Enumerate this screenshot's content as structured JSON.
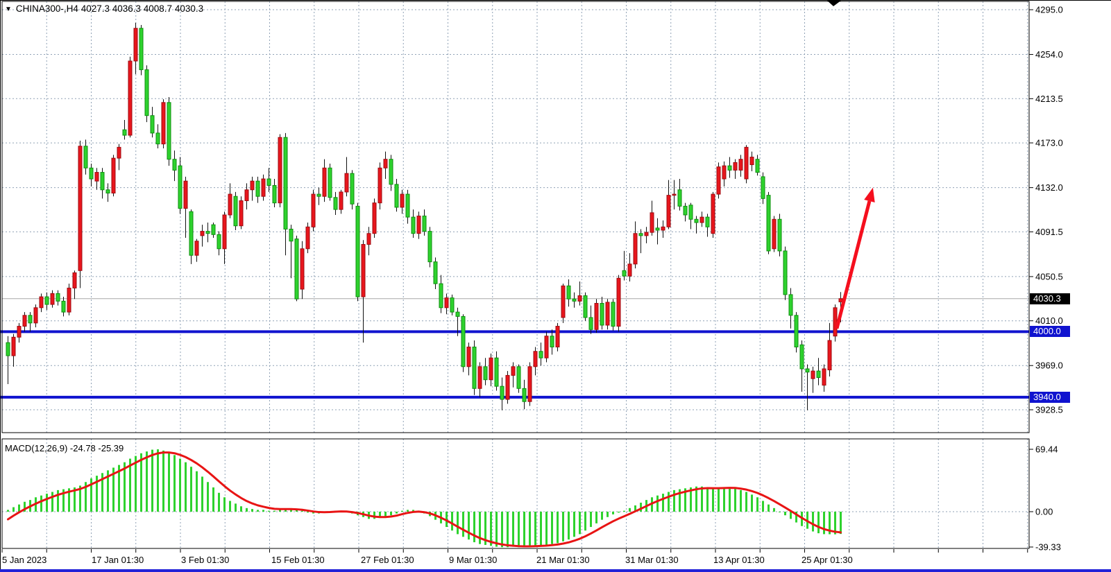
{
  "header": {
    "triangle": "▼",
    "text": "CHINA300-,H4  4027.3 4036.3 4008.7 4030.3"
  },
  "price_tags": {
    "current": {
      "label": "4030.3"
    },
    "level1": {
      "label": "4000.0"
    },
    "level2": {
      "label": "3940.0"
    }
  },
  "price_axis": {
    "ticks": [
      4295.0,
      4254.0,
      4213.5,
      4173.0,
      4132.0,
      4091.5,
      4050.5,
      4010.0,
      3969.0,
      3928.5
    ],
    "labels": [
      "4295.0",
      "4254.0",
      "4213.5",
      "4173.0",
      "4132.0",
      "4091.5",
      "4050.5",
      "4010.0",
      "3969.0",
      "3928.5"
    ]
  },
  "time_axis": {
    "labels": [
      "5 Jan 2023",
      "17 Jan 01:30",
      "3 Feb 01:30",
      "15 Feb 01:30",
      "27 Feb 01:30",
      "9 Mar 01:30",
      "21 Mar 01:30",
      "31 Mar 01:30",
      "13 Apr 01:30",
      "25 Apr 01:30"
    ],
    "x": [
      3,
      132,
      261,
      391,
      520,
      647,
      773,
      901,
      1028,
      1155
    ]
  },
  "indicator": {
    "label": "MACD(12,26,9) -24.78 -25.39",
    "axis_labels": [
      "69.44",
      "0.00",
      "-39.33"
    ]
  },
  "colors": {
    "up": "#e8161d",
    "up_border": "#9e0b10",
    "down": "#2ed22e",
    "down_border": "#0e8f0e",
    "wick": "#111111",
    "grid": "#8fa1b5",
    "level_blue": "#1013cf",
    "current_line": "#a8a8a8",
    "macd_hist": "#2ed22e",
    "signal": "#e81414",
    "arrow": "#f50f1e"
  },
  "chart_data": {
    "type": "candlestick",
    "title": "CHINA300-,H4",
    "symbol": "CHINA300-",
    "timeframe": "H4",
    "current_bar": {
      "open": 4027.3,
      "high": 4036.3,
      "low": 4008.7,
      "close": 4030.3
    },
    "current_price": 4030.3,
    "levels": [
      4000.0,
      3940.0
    ],
    "y_ticks": [
      4295.0,
      4254.0,
      4213.5,
      4173.0,
      4132.0,
      4091.5,
      4050.5,
      4010.0,
      3969.0,
      3928.5
    ],
    "x_tick_labels": [
      "5 Jan 2023",
      "17 Jan 01:30",
      "3 Feb 01:30",
      "15 Feb 01:30",
      "27 Feb 01:30",
      "9 Mar 01:30",
      "21 Mar 01:30",
      "31 Mar 01:30",
      "13 Apr 01:30",
      "25 Apr 01:30"
    ],
    "candles_ohlc": [
      [
        3990,
        3996,
        3952,
        3978
      ],
      [
        3978,
        3998,
        3968,
        3995
      ],
      [
        3995,
        4008,
        3990,
        4005
      ],
      [
        4005,
        4018,
        4000,
        4015
      ],
      [
        4015,
        4018,
        4000,
        4008
      ],
      [
        4008,
        4025,
        4004,
        4022
      ],
      [
        4022,
        4035,
        4018,
        4032
      ],
      [
        4032,
        4036,
        4020,
        4025
      ],
      [
        4025,
        4038,
        4022,
        4035
      ],
      [
        4035,
        4038,
        4024,
        4028
      ],
      [
        4028,
        4032,
        4014,
        4018
      ],
      [
        4018,
        4044,
        4015,
        4040
      ],
      [
        4040,
        4056,
        4030,
        4054
      ],
      [
        4056,
        4175,
        4040,
        4170
      ],
      [
        4170,
        4176,
        4144,
        4150
      ],
      [
        4150,
        4154,
        4133,
        4140
      ],
      [
        4138,
        4150,
        4130,
        4146
      ],
      [
        4146,
        4150,
        4122,
        4130
      ],
      [
        4130,
        4136,
        4119,
        4127
      ],
      [
        4127,
        4162,
        4124,
        4159
      ],
      [
        4159,
        4172,
        4148,
        4169
      ],
      [
        4185,
        4194,
        4176,
        4180
      ],
      [
        4180,
        4252,
        4178,
        4248
      ],
      [
        4248,
        4283,
        4236,
        4278
      ],
      [
        4278,
        4281,
        4235,
        4240
      ],
      [
        4240,
        4244,
        4192,
        4198
      ],
      [
        4198,
        4206,
        4178,
        4182
      ],
      [
        4182,
        4190,
        4168,
        4172
      ],
      [
        4172,
        4213,
        4168,
        4210
      ],
      [
        4210,
        4215,
        4152,
        4158
      ],
      [
        4158,
        4166,
        4138,
        4148
      ],
      [
        4152,
        4160,
        4108,
        4113
      ],
      [
        4113,
        4142,
        4086,
        4138
      ],
      [
        4110,
        4112,
        4062,
        4070
      ],
      [
        4070,
        4085,
        4064,
        4083
      ],
      [
        4088,
        4098,
        4078,
        4092
      ],
      [
        4092,
        4100,
        4082,
        4090
      ],
      [
        4098,
        4100,
        4086,
        4089
      ],
      [
        4089,
        4092,
        4070,
        4076
      ],
      [
        4076,
        4110,
        4062,
        4107
      ],
      [
        4107,
        4136,
        4104,
        4126
      ],
      [
        4124,
        4128,
        4093,
        4097
      ],
      [
        4097,
        4124,
        4094,
        4120
      ],
      [
        4120,
        4136,
        4112,
        4130
      ],
      [
        4130,
        4142,
        4120,
        4138
      ],
      [
        4138,
        4142,
        4118,
        4124
      ],
      [
        4124,
        4144,
        4120,
        4140
      ],
      [
        4140,
        4150,
        4128,
        4134
      ],
      [
        4134,
        4140,
        4114,
        4118
      ],
      [
        4118,
        4181,
        4114,
        4178
      ],
      [
        4178,
        4182,
        4070,
        4094
      ],
      [
        4094,
        4098,
        4049,
        4083
      ],
      [
        4085,
        4088,
        4028,
        4030
      ],
      [
        4039,
        4083,
        4030,
        4076
      ],
      [
        4076,
        4100,
        4072,
        4096
      ],
      [
        4096,
        4130,
        4092,
        4126
      ],
      [
        4126,
        4132,
        4116,
        4124
      ],
      [
        4124,
        4158,
        4119,
        4150
      ],
      [
        4150,
        4154,
        4120,
        4123
      ],
      [
        4123,
        4128,
        4107,
        4112
      ],
      [
        4112,
        4130,
        4108,
        4128
      ],
      [
        4128,
        4160,
        4124,
        4145
      ],
      [
        4145,
        4148,
        4112,
        4117
      ],
      [
        4115,
        4118,
        4028,
        4032
      ],
      [
        4032,
        4084,
        3990,
        4080
      ],
      [
        4080,
        4096,
        4070,
        4090
      ],
      [
        4090,
        4122,
        4086,
        4118
      ],
      [
        4118,
        4155,
        4112,
        4150
      ],
      [
        4150,
        4165,
        4140,
        4158
      ],
      [
        4158,
        4162,
        4129,
        4135
      ],
      [
        4135,
        4140,
        4110,
        4114
      ],
      [
        4114,
        4130,
        4108,
        4126
      ],
      [
        4126,
        4130,
        4099,
        4105
      ],
      [
        4105,
        4112,
        4086,
        4090
      ],
      [
        4090,
        4110,
        4085,
        4106
      ],
      [
        4106,
        4112,
        4088,
        4092
      ],
      [
        4092,
        4096,
        4059,
        4064
      ],
      [
        4064,
        4068,
        4039,
        4044
      ],
      [
        4044,
        4052,
        4017,
        4022
      ],
      [
        4022,
        4035,
        4016,
        4031
      ],
      [
        4031,
        4034,
        4015,
        4018
      ],
      [
        4018,
        4022,
        3996,
        4014
      ],
      [
        4014,
        4016,
        3963,
        3968
      ],
      [
        3968,
        3990,
        3960,
        3986
      ],
      [
        3986,
        3992,
        3942,
        3948
      ],
      [
        3948,
        3972,
        3940,
        3968
      ],
      [
        3968,
        3976,
        3951,
        3956
      ],
      [
        3956,
        3980,
        3950,
        3976
      ],
      [
        3976,
        3982,
        3946,
        3950
      ],
      [
        3950,
        3958,
        3928,
        3938
      ],
      [
        3938,
        3964,
        3934,
        3960
      ],
      [
        3960,
        3972,
        3949,
        3968
      ],
      [
        3968,
        3970,
        3944,
        3948
      ],
      [
        3948,
        3956,
        3929,
        3936
      ],
      [
        3936,
        3972,
        3932,
        3968
      ],
      [
        3968,
        3986,
        3960,
        3982
      ],
      [
        3982,
        3990,
        3969,
        3976
      ],
      [
        3976,
        4000,
        3972,
        3996
      ],
      [
        3996,
        4002,
        3979,
        3986
      ],
      [
        3986,
        4008,
        3982,
        4005
      ],
      [
        4013,
        4044,
        4008,
        4042
      ],
      [
        4042,
        4048,
        4023,
        4030
      ],
      [
        4030,
        4036,
        4022,
        4028
      ],
      [
        4028,
        4046,
        4024,
        4033
      ],
      [
        4033,
        4036,
        4010,
        4013
      ],
      [
        4013,
        4024,
        3998,
        4002
      ],
      [
        4002,
        4030,
        3999,
        4026
      ],
      [
        4026,
        4032,
        4002,
        4006
      ],
      [
        4006,
        4030,
        4002,
        4027
      ],
      [
        4027,
        4030,
        4001,
        4005
      ],
      [
        4005,
        4052,
        4000,
        4049
      ],
      [
        4056,
        4074,
        4047,
        4051
      ],
      [
        4051,
        4072,
        4046,
        4062
      ],
      [
        4062,
        4101,
        4058,
        4090
      ],
      [
        4090,
        4094,
        4072,
        4088
      ],
      [
        4088,
        4096,
        4081,
        4091
      ],
      [
        4091,
        4120,
        4088,
        4109
      ],
      [
        4095,
        4104,
        4080,
        4093
      ],
      [
        4093,
        4102,
        4086,
        4096
      ],
      [
        4096,
        4139,
        4094,
        4125
      ],
      [
        4125,
        4139,
        4112,
        4126
      ],
      [
        4130,
        4140,
        4111,
        4115
      ],
      [
        4115,
        4118,
        4101,
        4107
      ],
      [
        4116,
        4118,
        4094,
        4103
      ],
      [
        4103,
        4106,
        4090,
        4100
      ],
      [
        4100,
        4110,
        4096,
        4105
      ],
      [
        4105,
        4108,
        4087,
        4096
      ],
      [
        4090,
        4128,
        4086,
        4126
      ],
      [
        4126,
        4155,
        4122,
        4151
      ],
      [
        4140,
        4156,
        4133,
        4152
      ],
      [
        4152,
        4160,
        4141,
        4148
      ],
      [
        4148,
        4158,
        4140,
        4155
      ],
      [
        4148,
        4162,
        4142,
        4158
      ],
      [
        4140,
        4171,
        4136,
        4169
      ],
      [
        4153,
        4165,
        4147,
        4160
      ],
      [
        4158,
        4162,
        4143,
        4146
      ],
      [
        4142,
        4146,
        4117,
        4122
      ],
      [
        4125,
        4128,
        4071,
        4074
      ],
      [
        4076,
        4106,
        4073,
        4103
      ],
      [
        4103,
        4108,
        4069,
        4074
      ],
      [
        4074,
        4078,
        4029,
        4034
      ],
      [
        4034,
        4040,
        4003,
        4015
      ],
      [
        4015,
        4018,
        3981,
        3986
      ],
      [
        3988,
        3992,
        3945,
        3966
      ],
      [
        3966,
        3970,
        3928,
        3963
      ],
      [
        3957,
        3968,
        3944,
        3964
      ],
      [
        3964,
        3976,
        3951,
        3958
      ],
      [
        3951,
        3970,
        3945,
        3966
      ],
      [
        3965,
        4008,
        3959,
        3992
      ],
      [
        3996,
        4025,
        3991,
        4022
      ],
      [
        4027.3,
        4036.3,
        4008.7,
        4030.3
      ]
    ],
    "macd": {
      "params": "12,26,9",
      "macd_value": -24.78,
      "signal_value": -25.39,
      "axis_ticks": [
        69.44,
        0.0,
        -39.33
      ],
      "signal_seed": -13,
      "histogram": [
        2,
        5,
        8,
        11,
        13,
        16,
        18,
        20,
        22,
        24,
        25,
        26,
        27,
        29,
        33,
        37,
        40,
        43,
        46,
        49,
        52,
        55,
        59,
        62,
        65,
        67,
        69,
        69.4,
        68,
        66,
        63,
        59,
        55,
        50,
        45,
        39,
        33,
        27,
        21,
        16,
        12,
        9,
        6,
        4,
        3,
        2,
        2,
        1,
        1,
        2,
        3,
        3,
        2,
        1,
        -1,
        -2,
        -2,
        -1,
        0,
        1,
        1,
        0,
        -2,
        -4,
        -6,
        -8,
        -8,
        -7,
        -6,
        -4,
        -2,
        1,
        2,
        2,
        1,
        -2,
        -5,
        -9,
        -13,
        -17,
        -21,
        -25,
        -28,
        -31,
        -34,
        -36,
        -37,
        -38,
        -39,
        -39.5,
        -39.5,
        -39,
        -39.5,
        -39,
        -38.5,
        -38,
        -37.5,
        -37,
        -36,
        -35,
        -33,
        -31,
        -28,
        -25,
        -21,
        -17,
        -13,
        -9,
        -6,
        -3,
        -1,
        1,
        4,
        7,
        10,
        13,
        16,
        18,
        20,
        22,
        24,
        25,
        26,
        27,
        28,
        28,
        27,
        26,
        26,
        27,
        27,
        26,
        24,
        22,
        19,
        16,
        12,
        8,
        4,
        0,
        -4,
        -8,
        -12,
        -16,
        -19,
        -22,
        -24,
        -25,
        -25.1,
        -25.2,
        -24.78
      ]
    },
    "annotation_arrow": {
      "from_bar": 149.3,
      "from_price": 4003,
      "to_bar": 155.8,
      "to_price": 4132
    }
  }
}
